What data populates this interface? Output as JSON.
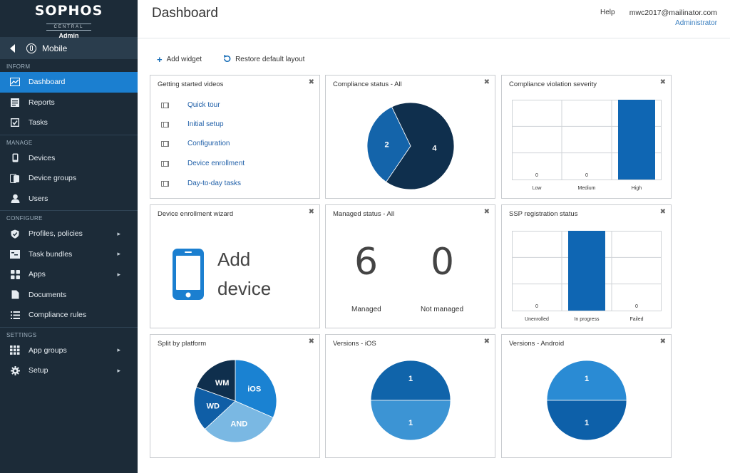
{
  "brand": {
    "logo": "SOPHOS",
    "sub": "CENTRAL",
    "role": "Admin"
  },
  "context": {
    "label": "Mobile"
  },
  "sections": {
    "inform": "INFORM",
    "manage": "MANAGE",
    "configure": "CONFIGURE",
    "settings": "SETTINGS"
  },
  "nav": {
    "dashboard": "Dashboard",
    "reports": "Reports",
    "tasks": "Tasks",
    "devices": "Devices",
    "device_groups": "Device groups",
    "users": "Users",
    "profiles": "Profiles, policies",
    "task_bundles": "Task bundles",
    "apps": "Apps",
    "documents": "Documents",
    "compliance_rules": "Compliance rules",
    "app_groups": "App groups",
    "setup": "Setup"
  },
  "header": {
    "title": "Dashboard",
    "help": "Help",
    "email": "mwc2017@mailinator.com",
    "role": "Administrator"
  },
  "toolbar": {
    "add_widget": "Add widget",
    "restore": "Restore default layout"
  },
  "widgets": {
    "videos": {
      "title": "Getting started videos",
      "items": [
        "Quick tour",
        "Initial setup",
        "Configuration",
        "Device enrollment",
        "Day-to-day tasks"
      ]
    },
    "compliance": {
      "title": "Compliance status - All",
      "slices": [
        {
          "label": "4",
          "value": 4,
          "color": "#0f2f4d"
        },
        {
          "label": "2",
          "value": 2,
          "color": "#1464aa"
        }
      ]
    },
    "severity": {
      "title": "Compliance violation severity",
      "categories": [
        "Low",
        "Medium",
        "High"
      ],
      "values": [
        0,
        0,
        2
      ]
    },
    "enrollment": {
      "title": "Device enrollment wizard",
      "line1": "Add",
      "line2": "device"
    },
    "managed": {
      "title": "Managed status - All",
      "managed_value": "6",
      "managed_label": "Managed",
      "not_value": "0",
      "not_label": "Not managed"
    },
    "ssp": {
      "title": "SSP registration status",
      "categories": [
        "Unenrolled",
        "In progress",
        "Failed"
      ],
      "values": [
        0,
        1,
        0
      ]
    },
    "platform": {
      "title": "Split by platform",
      "slices": [
        {
          "label": "iOS",
          "color": "#1a82d2"
        },
        {
          "label": "AND",
          "color": "#7ab8e3"
        },
        {
          "label": "WD",
          "color": "#0f5ea6"
        },
        {
          "label": "WM",
          "color": "#0f2f4d"
        }
      ]
    },
    "ios": {
      "title": "Versions - iOS",
      "slices": [
        {
          "label": "1",
          "value": 1,
          "color": "#1064aa"
        },
        {
          "label": "1",
          "value": 1,
          "color": "#3c94d4"
        }
      ]
    },
    "android": {
      "title": "Versions - Android",
      "slices": [
        {
          "label": "1",
          "value": 1,
          "color": "#2a8bd4"
        },
        {
          "label": "1",
          "value": 1,
          "color": "#0d60a9"
        }
      ]
    }
  },
  "chart_data": [
    {
      "type": "pie",
      "title": "Compliance status - All",
      "categories": [
        "4",
        "2"
      ],
      "values": [
        4,
        2
      ]
    },
    {
      "type": "bar",
      "title": "Compliance violation severity",
      "categories": [
        "Low",
        "Medium",
        "High"
      ],
      "values": [
        0,
        0,
        2
      ]
    },
    {
      "type": "bar",
      "title": "SSP registration status",
      "categories": [
        "Unenrolled",
        "In progress",
        "Failed"
      ],
      "values": [
        0,
        1,
        0
      ]
    },
    {
      "type": "pie",
      "title": "Split by platform",
      "categories": [
        "iOS",
        "AND",
        "WD",
        "WM"
      ]
    },
    {
      "type": "pie",
      "title": "Versions - iOS",
      "categories": [
        "1",
        "1"
      ],
      "values": [
        1,
        1
      ]
    },
    {
      "type": "pie",
      "title": "Versions - Android",
      "categories": [
        "1",
        "1"
      ],
      "values": [
        1,
        1
      ]
    }
  ]
}
